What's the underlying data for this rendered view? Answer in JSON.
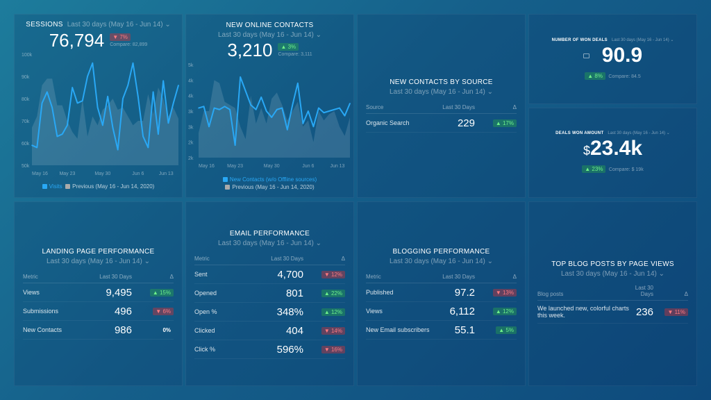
{
  "sessions": {
    "title": "SESSIONS",
    "range": "Last 30 days (May 16 - Jun 14) ⌄",
    "value": "76,794",
    "delta": "▼ 7%",
    "compare": "Compare: 82,899",
    "legend_current": "Visits",
    "legend_previous": "Previous (May 16 - Jun 14, 2020)"
  },
  "contacts": {
    "title": "NEW ONLINE CONTACTS",
    "range": "Last 30 days (May 16 - Jun 14) ⌄",
    "value": "3,210",
    "delta": "▲ 3%",
    "compare": "Compare: 3,111",
    "legend_current": "New Contacts (w/o Offline sources)",
    "legend_previous": "Previous (May 16 - Jun 14, 2020)"
  },
  "by_source": {
    "title": "NEW CONTACTS BY SOURCE",
    "range": "Last 30 days (May 16 - Jun 14) ⌄",
    "headers": [
      "Source",
      "Last 30 Days",
      "Δ"
    ],
    "rows": [
      {
        "name": "Organic Search",
        "value": "229",
        "delta": "▲ 17%",
        "dir": "up"
      }
    ]
  },
  "won_deals": {
    "title": "NUMBER OF WON DEALS",
    "range": "Last 30 days (May 16 - Jun 14) ⌄",
    "value": "90.9",
    "delta": "▲ 8%",
    "compare": "Compare: 84.5",
    "icon": "briefcase-icon"
  },
  "deals_amount": {
    "title": "DEALS WON AMOUNT",
    "range": "Last 30 days (May 16 - Jun 14) ⌄",
    "currency": "$",
    "value": "23.4k",
    "delta": "▲ 23%",
    "compare": "Compare: $ 19k"
  },
  "landing": {
    "title": "LANDING PAGE PERFORMANCE",
    "range": "Last 30 days (May 16 - Jun 14) ⌄",
    "headers": [
      "Metric",
      "Last 30 Days",
      "Δ"
    ],
    "rows": [
      {
        "name": "Views",
        "value": "9,495",
        "delta": "▲ 15%",
        "dir": "up"
      },
      {
        "name": "Submissions",
        "value": "496",
        "delta": "▼ 6%",
        "dir": "down"
      },
      {
        "name": "New Contacts",
        "value": "986",
        "delta": "0%",
        "dir": "flat"
      }
    ]
  },
  "email": {
    "title": "EMAIL PERFORMANCE",
    "range": "Last 30 days (May 16 - Jun 14) ⌄",
    "headers": [
      "Metric",
      "Last 30 Days",
      "Δ"
    ],
    "rows": [
      {
        "name": "Sent",
        "value": "4,700",
        "delta": "▼ 12%",
        "dir": "down"
      },
      {
        "name": "Opened",
        "value": "801",
        "delta": "▲ 22%",
        "dir": "up"
      },
      {
        "name": "Open %",
        "value": "348%",
        "delta": "▲ 12%",
        "dir": "up"
      },
      {
        "name": "Clicked",
        "value": "404",
        "delta": "▼ 14%",
        "dir": "down"
      },
      {
        "name": "Click %",
        "value": "596%",
        "delta": "▼ 16%",
        "dir": "down"
      }
    ]
  },
  "blogging": {
    "title": "BLOGGING PERFORMANCE",
    "range": "Last 30 days (May 16 - Jun 14) ⌄",
    "headers": [
      "Metric",
      "Last 30 Days",
      "Δ"
    ],
    "rows": [
      {
        "name": "Published",
        "value": "97.2",
        "delta": "▼ 13%",
        "dir": "down"
      },
      {
        "name": "Views",
        "value": "6,112",
        "delta": "▲ 12%",
        "dir": "up"
      },
      {
        "name": "New Email subscribers",
        "value": "55.1",
        "delta": "▲ 5%",
        "dir": "up"
      }
    ]
  },
  "top_posts": {
    "title": "TOP BLOG POSTS BY PAGE VIEWS",
    "range": "Last 30 days (May 16 - Jun 14) ⌄",
    "headers": [
      "Blog posts",
      "Last 30 Days",
      "Δ"
    ],
    "rows": [
      {
        "name": "We launched new, colorful charts this week.",
        "value": "236",
        "delta": "▼ 11%",
        "dir": "down"
      }
    ]
  },
  "colors": {
    "current": "#29a8f5",
    "up": "#6ef08a",
    "down": "#ff7b80"
  },
  "chart_data": [
    {
      "type": "line",
      "title": "SESSIONS",
      "x_ticks": [
        "May 16",
        "May 23",
        "May 30",
        "Jun 6",
        "Jun 13"
      ],
      "y_ticks": [
        "100k",
        "90k",
        "80k",
        "70k",
        "60k",
        "50k"
      ],
      "ylim": [
        50000,
        100000
      ],
      "series": [
        {
          "name": "Visits",
          "values": [
            59,
            58,
            78,
            83,
            76,
            63,
            64,
            68,
            85,
            78,
            79,
            90,
            96,
            76,
            68,
            81,
            67,
            57,
            80,
            86,
            96,
            81,
            63,
            58,
            83,
            64,
            88,
            69,
            78,
            86
          ]
        },
        {
          "name": "Previous (May 16 - Jun 14, 2020)",
          "values": [
            67,
            72,
            86,
            89,
            89,
            77,
            77,
            70,
            65,
            62,
            80,
            63,
            72,
            68,
            75,
            77,
            80,
            75,
            76,
            72,
            68,
            70,
            70,
            82,
            73,
            85,
            80,
            72,
            76,
            71
          ]
        }
      ],
      "unit": "k"
    },
    {
      "type": "line",
      "title": "NEW ONLINE CONTACTS",
      "x_ticks": [
        "May 16",
        "May 23",
        "May 30",
        "Jun 6",
        "Jun 13"
      ],
      "y_ticks": [
        "5k",
        "4k",
        "4k",
        "3k",
        "3k",
        "2k",
        "2k"
      ],
      "ylim": [
        2000,
        5000
      ],
      "series": [
        {
          "name": "New Contacts (w/o Offline sources)",
          "values": [
            3.6,
            3.65,
            3.0,
            3.6,
            3.55,
            3.65,
            3.55,
            2.4,
            4.6,
            4.15,
            3.7,
            3.55,
            3.95,
            3.5,
            3.3,
            3.55,
            3.6,
            2.9,
            3.7,
            4.4,
            3.1,
            3.5,
            3.0,
            3.6,
            3.45,
            3.5,
            3.55,
            3.6,
            3.35,
            3.75
          ]
        },
        {
          "name": "Previous (May 16 - Jun 14, 2020)",
          "values": [
            2.8,
            3.5,
            3.5,
            4.5,
            4.4,
            3.8,
            3.7,
            3.6,
            3.0,
            2.6,
            4.0,
            3.1,
            3.6,
            3.1,
            3.9,
            4.1,
            3.7,
            3.2,
            3.5,
            3.8,
            3.0,
            3.2,
            2.5,
            3.5,
            3.2,
            3.4,
            3.5,
            3.0,
            2.7,
            3.3
          ]
        }
      ],
      "unit": "k"
    }
  ]
}
